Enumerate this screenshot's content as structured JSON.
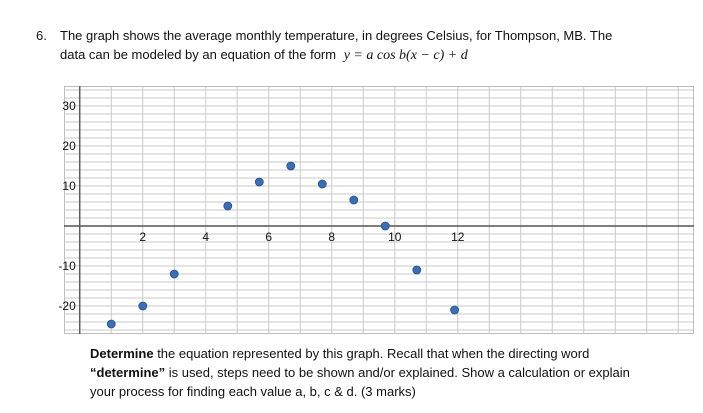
{
  "question": {
    "number": "6.",
    "line1": "The graph shows the average monthly temperature, in degrees Celsius, for Thompson, MB. The",
    "line2": "data can be modeled by an equation of the form",
    "formula": "y = a cos b(x − c) + d"
  },
  "chart_data": {
    "type": "scatter",
    "title": "",
    "xlabel": "",
    "ylabel": "",
    "xlim": [
      -0.5,
      19.5
    ],
    "ylim": [
      -27,
      35
    ],
    "grid": true,
    "x_ticks": [
      "2",
      "4",
      "6",
      "8",
      "10",
      "12"
    ],
    "y_ticks": [
      "30",
      "20",
      "10",
      "-10",
      "-20"
    ],
    "points": [
      {
        "x": 1,
        "y": -24.5
      },
      {
        "x": 2,
        "y": -20
      },
      {
        "x": 3,
        "y": -12
      },
      {
        "x": 4.7,
        "y": 5
      },
      {
        "x": 5.7,
        "y": 11
      },
      {
        "x": 6.7,
        "y": 15
      },
      {
        "x": 7.7,
        "y": 10.5
      },
      {
        "x": 8.7,
        "y": 6.5
      },
      {
        "x": 9.7,
        "y": 0
      },
      {
        "x": 10.7,
        "y": -11
      },
      {
        "x": 11.9,
        "y": -21
      }
    ],
    "point_color": "#3a6fb5"
  },
  "task": {
    "bold1": "Determine",
    "text1": " the equation represented by this graph. Recall that when the directing word ",
    "bold2": "“determine”",
    "text2": " is used, steps need to be shown and/or explained. Show a calculation or explain your process for finding each value a, b, c & d. (3 marks)"
  }
}
